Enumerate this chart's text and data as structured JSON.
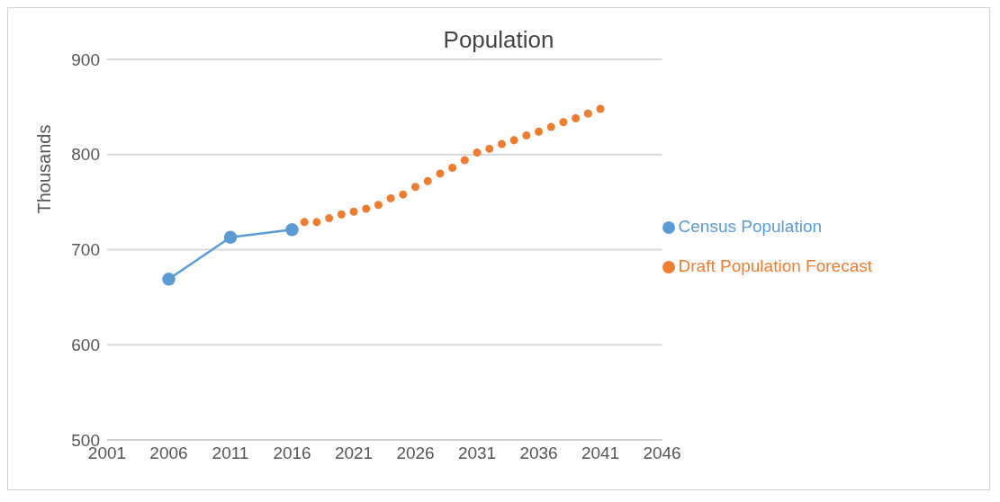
{
  "chart_data": {
    "type": "line",
    "title": "Population",
    "ylabel": "Thousands",
    "xlim": [
      2001,
      2046
    ],
    "xticks": [
      2001,
      2006,
      2011,
      2016,
      2021,
      2026,
      2031,
      2036,
      2041,
      2046
    ],
    "ylim": [
      500,
      900
    ],
    "yticks": [
      500,
      600,
      700,
      800,
      900
    ],
    "grid": "y",
    "legend": "right",
    "marker": "circle",
    "series": [
      {
        "name": "Census Population",
        "color": "#5b9bd5",
        "x": [
          2006,
          2011,
          2016
        ],
        "values": [
          669,
          713,
          721
        ]
      },
      {
        "name": "Draft Population Forecast",
        "type": "scatter",
        "color": "#ed7d31",
        "x": [
          2017,
          2018,
          2019,
          2020,
          2021,
          2022,
          2023,
          2024,
          2025,
          2026,
          2027,
          2028,
          2029,
          2030,
          2031,
          2032,
          2033,
          2034,
          2035,
          2036,
          2037,
          2038,
          2039,
          2040,
          2041
        ],
        "values": [
          729,
          729,
          733,
          737,
          740,
          743,
          747,
          754,
          758,
          766,
          772,
          780,
          786,
          794,
          802,
          806,
          811,
          815,
          820,
          824,
          829,
          834,
          838,
          843,
          848
        ]
      }
    ]
  }
}
